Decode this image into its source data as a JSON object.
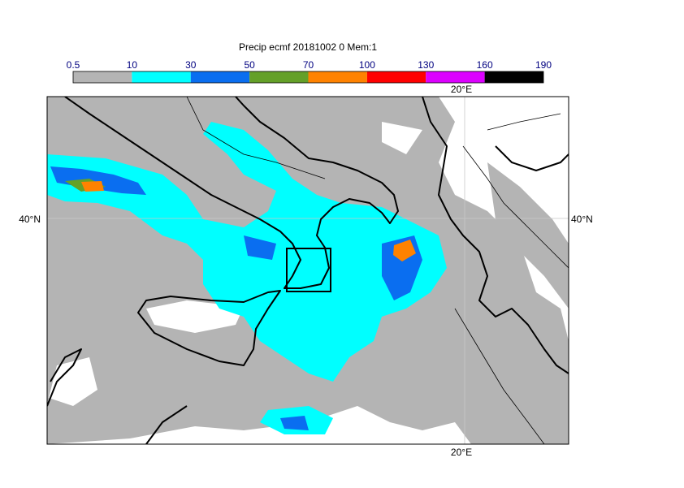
{
  "title": "Precip ecmf 20181002 0 Mem:1",
  "colorbar": {
    "labels": [
      0.5,
      10,
      30,
      50,
      70,
      100,
      130,
      160,
      190
    ],
    "colors": [
      "#b4b4b4",
      "#00ffff",
      "#0a6ef0",
      "#64a028",
      "#ff8200",
      "#ff0000",
      "#dc00ff",
      "#000000"
    ]
  },
  "map": {
    "lon_labels": [
      "20°E",
      "20°E"
    ],
    "lat_labels": [
      "40°N",
      "40°N"
    ]
  }
}
